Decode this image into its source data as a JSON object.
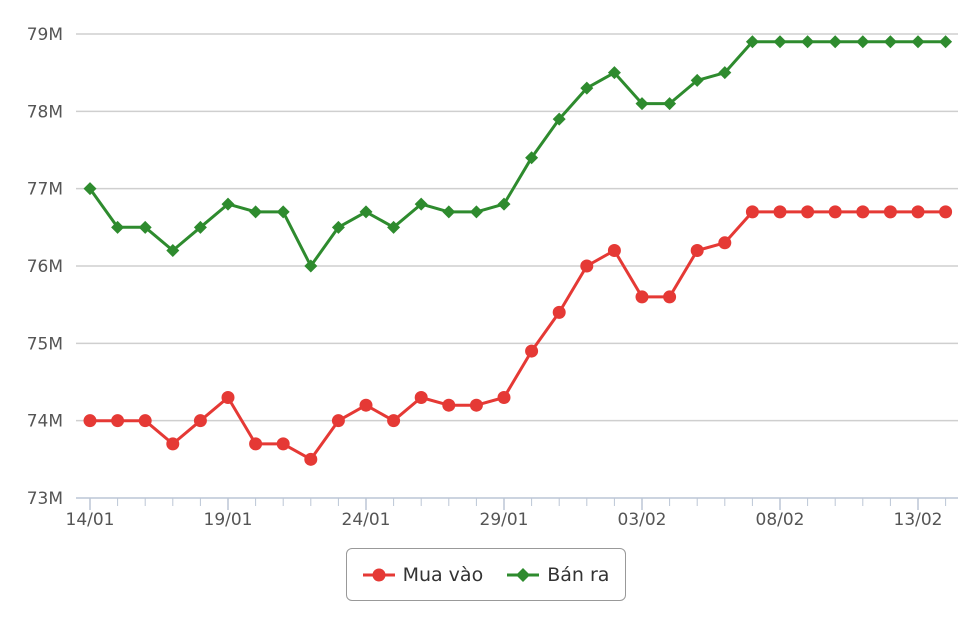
{
  "chart_data": {
    "type": "line",
    "title": "",
    "xlabel": "",
    "ylabel": "",
    "x": [
      "14/01",
      "15/01",
      "16/01",
      "17/01",
      "18/01",
      "19/01",
      "20/01",
      "21/01",
      "22/01",
      "23/01",
      "24/01",
      "25/01",
      "26/01",
      "27/01",
      "28/01",
      "29/01",
      "30/01",
      "31/01",
      "01/02",
      "02/02",
      "03/02",
      "04/02",
      "05/02",
      "06/02",
      "07/02",
      "08/02",
      "09/02",
      "10/02",
      "11/02",
      "12/02",
      "13/02",
      "14/02"
    ],
    "xtick_labels": [
      "14/01",
      "19/01",
      "24/01",
      "29/01",
      "03/02",
      "08/02",
      "13/02"
    ],
    "yticks": [
      73000000,
      74000000,
      75000000,
      76000000,
      77000000,
      78000000,
      79000000
    ],
    "ytick_labels": [
      "73M",
      "74M",
      "75M",
      "76M",
      "77M",
      "78M",
      "79M"
    ],
    "ylim": [
      73000000,
      79000000
    ],
    "grid": true,
    "legend_position": "bottom-center",
    "series": [
      {
        "name": "Mua vào",
        "color": "#e53935",
        "marker": "circle",
        "values": [
          74000000,
          74000000,
          74000000,
          73700000,
          74000000,
          74300000,
          73700000,
          73700000,
          73500000,
          74000000,
          74200000,
          74000000,
          74300000,
          74200000,
          74200000,
          74300000,
          74900000,
          75400000,
          76000000,
          76200000,
          75600000,
          75600000,
          76200000,
          76300000,
          76700000,
          76700000,
          76700000,
          76700000,
          76700000,
          76700000,
          76700000,
          76700000
        ]
      },
      {
        "name": "Bán ra",
        "color": "#2e8b2e",
        "marker": "diamond",
        "values": [
          77000000,
          76500000,
          76500000,
          76200000,
          76500000,
          76800000,
          76700000,
          76700000,
          76000000,
          76500000,
          76700000,
          76500000,
          76800000,
          76700000,
          76700000,
          76800000,
          77400000,
          77900000,
          78300000,
          78500000,
          78100000,
          78100000,
          78400000,
          78500000,
          78900000,
          78900000,
          78900000,
          78900000,
          78900000,
          78900000,
          78900000,
          78900000
        ]
      }
    ]
  }
}
